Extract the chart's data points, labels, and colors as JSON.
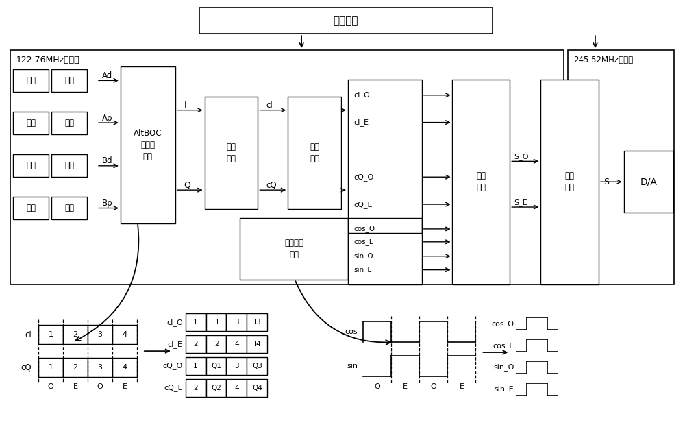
{
  "title": "时钟生成",
  "clock_domain_1": "122.76MHz时钟域",
  "clock_domain_2": "245.52MHz时钟域",
  "bg_color": "#ffffff",
  "input_rows": [
    [
      "数据",
      "伪码",
      "Ad"
    ],
    [
      "次码",
      "伪码",
      "Ap"
    ],
    [
      "数据",
      "伪码",
      "Bd"
    ],
    [
      "次码",
      "伪码",
      "Bp"
    ]
  ],
  "altboc_label": "AltBOC\n恒包络\n生成",
  "fushu_label": "复数\n滤波",
  "ditong_label": "低通\n滤波",
  "zhongpin_label": "中频载波\n生成",
  "bingxing_label": "并行\n调制",
  "bingchuan_label": "并串\n转换",
  "da_label": "D/A",
  "sig_labels_top": [
    "cI_O",
    "cI_E",
    "cQ_O",
    "cQ_E"
  ],
  "sig_labels_bot": [
    "cos_O",
    "cos_E",
    "sin_O",
    "sin_E"
  ],
  "tbl_labels": [
    "cI_O",
    "cI_E",
    "cQ_O",
    "cQ_E"
  ],
  "tbl_vals": [
    [
      "1",
      "I1",
      "3",
      "I3"
    ],
    [
      "2",
      "I2",
      "4",
      "I4"
    ],
    [
      "1",
      "Q1",
      "3",
      "Q3"
    ],
    [
      "2",
      "Q2",
      "4",
      "Q4"
    ]
  ],
  "step_labels": [
    "cos_O",
    "cos_E",
    "sin_O",
    "sin_E"
  ]
}
